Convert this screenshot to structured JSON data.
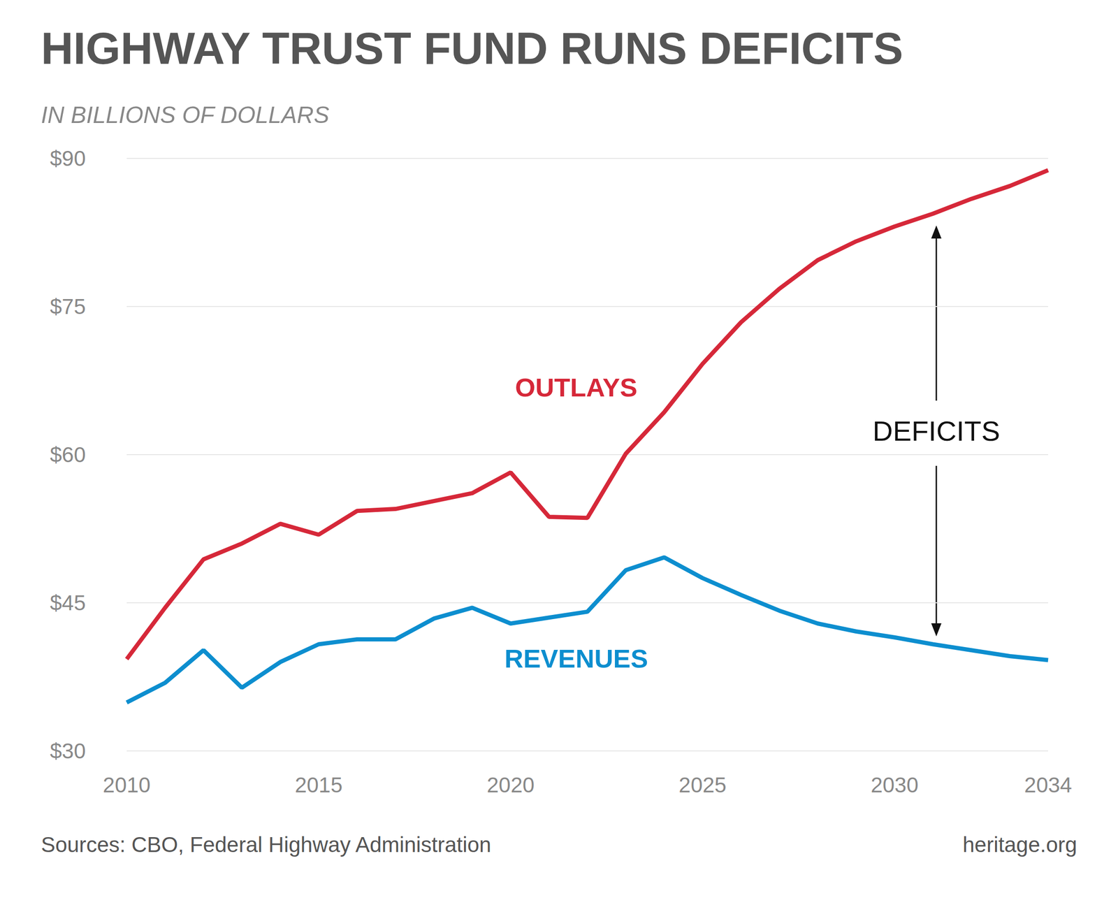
{
  "chart_data": {
    "type": "line",
    "title": "HIGHWAY TRUST FUND RUNS DEFICITS",
    "subtitle": "IN BILLIONS OF DOLLARS",
    "x": [
      2010,
      2011,
      2012,
      2013,
      2014,
      2015,
      2016,
      2017,
      2018,
      2019,
      2020,
      2021,
      2022,
      2023,
      2024,
      2025,
      2026,
      2027,
      2028,
      2029,
      2030,
      2031,
      2032,
      2033,
      2034
    ],
    "xlim": [
      2010,
      2034
    ],
    "xticks": [
      2010,
      2015,
      2020,
      2025,
      2030,
      2034
    ],
    "ylim": [
      30,
      90
    ],
    "yticks": [
      {
        "value": 30,
        "label": "$30"
      },
      {
        "value": 45,
        "label": "$45"
      },
      {
        "value": 60,
        "label": "$60"
      },
      {
        "value": 75,
        "label": "$75"
      },
      {
        "value": 90,
        "label": "$90"
      }
    ],
    "grid": true,
    "series": [
      {
        "name": "OUTLAYS",
        "color": "#d62839",
        "values": [
          39.3,
          44.5,
          49.4,
          51.0,
          53.0,
          51.9,
          54.3,
          54.5,
          55.3,
          56.1,
          58.2,
          53.7,
          53.6,
          60.1,
          64.3,
          69.2,
          73.4,
          76.8,
          79.7,
          81.6,
          83.1,
          84.4,
          85.9,
          87.2,
          88.8
        ]
      },
      {
        "name": "REVENUES",
        "color": "#0d8ecf",
        "values": [
          34.9,
          36.9,
          40.2,
          36.4,
          39.0,
          40.8,
          41.3,
          41.3,
          43.4,
          44.5,
          42.9,
          43.5,
          44.1,
          48.3,
          49.6,
          47.5,
          45.8,
          44.2,
          42.9,
          42.1,
          41.5,
          40.8,
          40.2,
          39.6,
          39.2
        ]
      }
    ],
    "annotations": [
      "DEFICITS"
    ],
    "source": "Sources: CBO, Federal Highway Administration",
    "credit": "heritage.org"
  }
}
